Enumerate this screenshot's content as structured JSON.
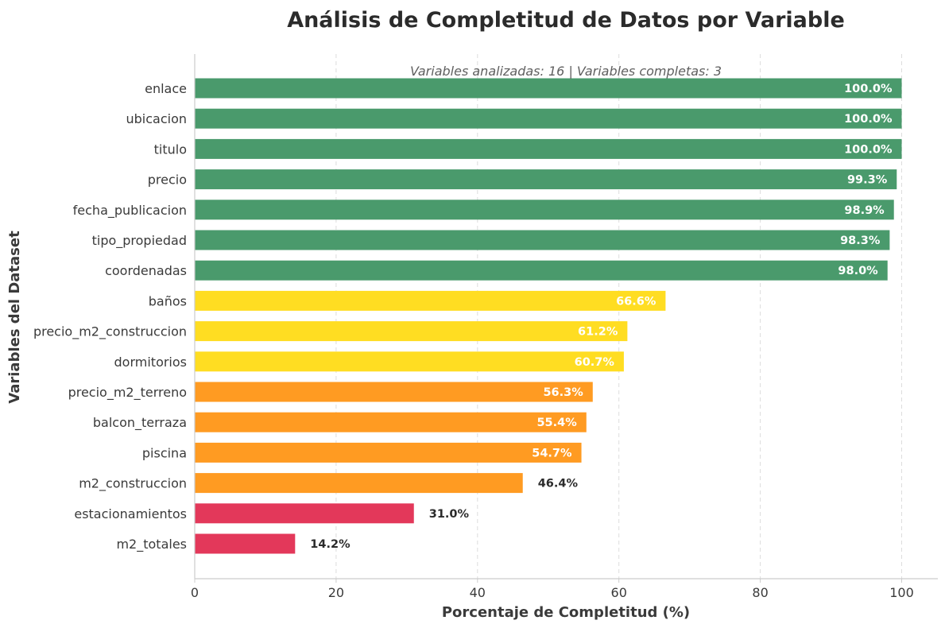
{
  "chart_data": {
    "type": "bar",
    "orientation": "horizontal",
    "title": "Análisis de Completitud de Datos por Variable",
    "subtitle": "Variables analizadas: 16 | Variables completas: 3",
    "xlabel": "Porcentaje de Completitud (%)",
    "ylabel": "Variables del Dataset",
    "xlim": [
      0,
      105
    ],
    "xticks": [
      0,
      20,
      40,
      60,
      80,
      100
    ],
    "grid": "vertical dashed",
    "categories": [
      "enlace",
      "ubicacion",
      "titulo",
      "precio",
      "fecha_publicacion",
      "tipo_propiedad",
      "coordenadas",
      "baños",
      "precio_m2_construccion",
      "dormitorios",
      "precio_m2_terreno",
      "balcon_terraza",
      "piscina",
      "m2_construccion",
      "estacionamientos",
      "m2_totales"
    ],
    "values": [
      100.0,
      100.0,
      100.0,
      99.3,
      98.9,
      98.3,
      98.0,
      66.6,
      61.2,
      60.7,
      56.3,
      55.4,
      54.7,
      46.4,
      31.0,
      14.2
    ],
    "value_labels": [
      "100.0%",
      "100.0%",
      "100.0%",
      "99.3%",
      "98.9%",
      "98.3%",
      "98.0%",
      "66.6%",
      "61.2%",
      "60.7%",
      "56.3%",
      "55.4%",
      "54.7%",
      "46.4%",
      "31.0%",
      "14.2%"
    ],
    "colors": {
      "high": "#4a9a6c",
      "medium": "#ffdd22",
      "low": "#ff9b22",
      "critical": "#e3385a"
    }
  }
}
